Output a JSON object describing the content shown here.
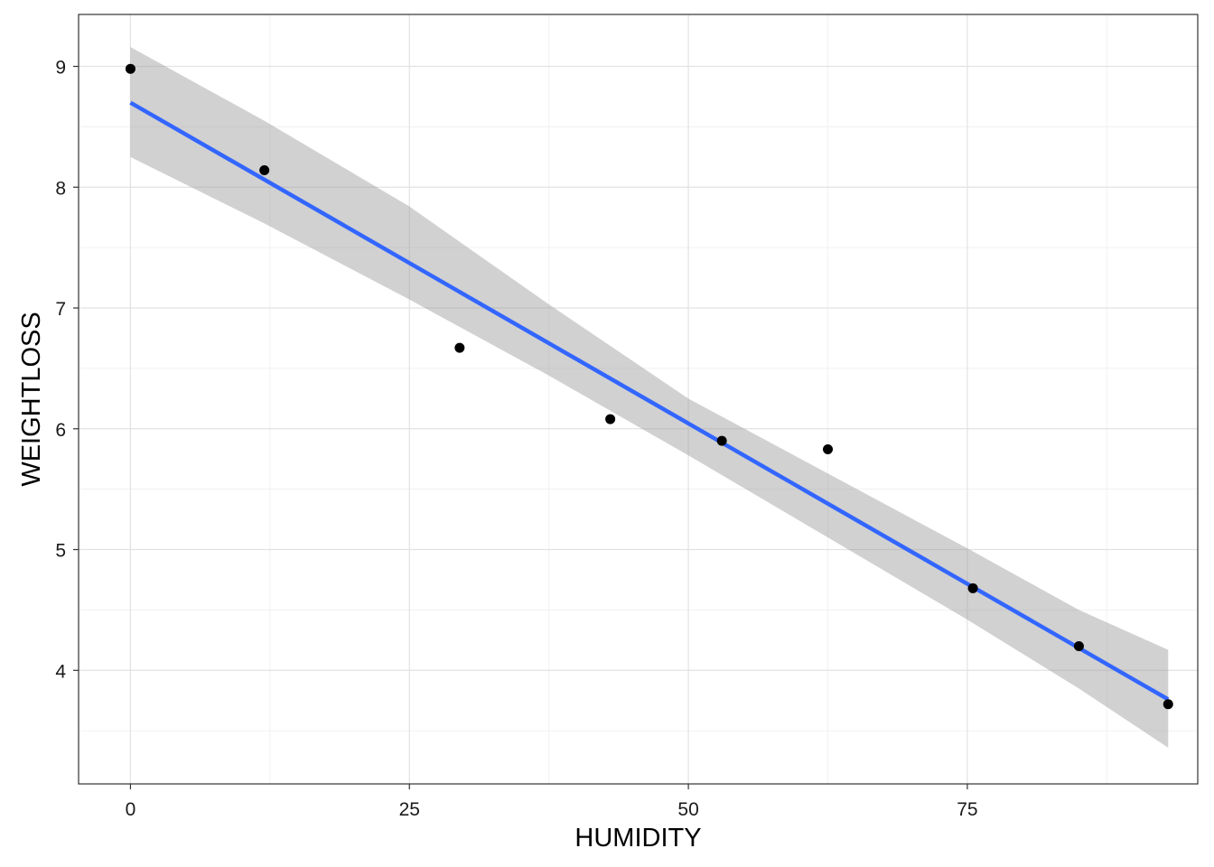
{
  "chart_data": {
    "type": "scatter",
    "title": "",
    "xlabel": "HUMIDITY",
    "ylabel": "WEIGHTLOSS",
    "xlim": [
      -4.65,
      95.65
    ],
    "ylim": [
      3.06,
      9.43
    ],
    "x_ticks": [
      0,
      25,
      50,
      75
    ],
    "x_tick_labels": [
      "0",
      "25",
      "50",
      "75"
    ],
    "y_ticks": [
      4,
      5,
      6,
      7,
      8,
      9
    ],
    "y_tick_labels": [
      "4",
      "5",
      "6",
      "7",
      "8",
      "9"
    ],
    "grid": true,
    "legend": "none",
    "points": {
      "x": [
        0,
        12,
        29.5,
        43,
        53,
        62.5,
        75.5,
        85,
        93
      ],
      "y": [
        8.98,
        8.14,
        6.67,
        6.08,
        5.9,
        5.83,
        4.68,
        4.2,
        3.72
      ]
    },
    "regression_line": {
      "x": [
        0,
        93
      ],
      "y": [
        8.7,
        3.76
      ]
    },
    "confidence_band": {
      "x": [
        0,
        12,
        25,
        37.5,
        50,
        62.5,
        75,
        85,
        93
      ],
      "lower": [
        8.25,
        7.7,
        7.07,
        6.44,
        5.78,
        5.1,
        4.42,
        3.85,
        3.36
      ],
      "upper": [
        9.16,
        8.55,
        7.84,
        7.03,
        6.25,
        5.63,
        5.01,
        4.5,
        4.17
      ]
    },
    "colors": {
      "panel_background": "#ffffff",
      "panel_border": "#333333",
      "grid_major": "#e2e2e2",
      "grid_minor": "#f1f1f1",
      "points": "#000000",
      "line": "#3366ff",
      "band": "#999999"
    }
  }
}
